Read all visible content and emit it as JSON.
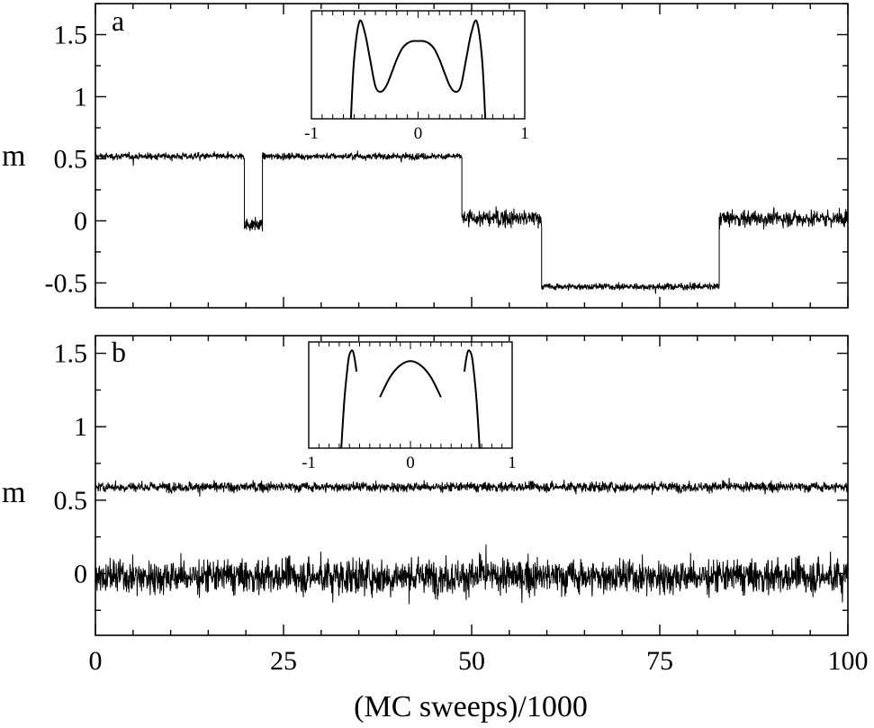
{
  "xlabel": "(MC sweeps)/1000",
  "chart_data": [
    {
      "type": "line",
      "panel_label": "a",
      "ylabel": "m",
      "xlim": [
        0,
        100
      ],
      "ylim": [
        -0.7,
        1.75
      ],
      "x_ticks": [
        "0",
        "25",
        "50",
        "75",
        "100"
      ],
      "y_ticks": [
        {
          "value": -0.5,
          "label": "-0.5"
        },
        {
          "value": 0,
          "label": "0"
        },
        {
          "value": 0.5,
          "label": "0.5"
        },
        {
          "value": 1,
          "label": "1"
        },
        {
          "value": 1.5,
          "label": "1.5"
        }
      ],
      "segments": [
        {
          "x": [
            0,
            19.8
          ],
          "level": 0.52,
          "noise": 0.035
        },
        {
          "x": [
            19.8,
            22.2
          ],
          "level": -0.03,
          "noise": 0.07
        },
        {
          "x": [
            22.2,
            48.7
          ],
          "level": 0.52,
          "noise": 0.035
        },
        {
          "x": [
            48.7,
            59.3
          ],
          "level": 0.02,
          "noise": 0.09
        },
        {
          "x": [
            59.3,
            82.9
          ],
          "level": -0.53,
          "noise": 0.035
        },
        {
          "x": [
            82.9,
            100
          ],
          "level": 0.02,
          "noise": 0.09
        }
      ],
      "inset": {
        "type": "line",
        "xlim": [
          -1,
          1
        ],
        "x_ticks": [
          "-1",
          "0",
          "1"
        ],
        "curves": [
          {
            "x": [
              -0.63,
              -0.6,
              -0.55,
              -0.5,
              -0.45,
              -0.4,
              -0.35,
              -0.3,
              -0.25,
              -0.2,
              -0.15,
              -0.1,
              -0.05,
              0,
              0.05,
              0.1,
              0.15,
              0.2,
              0.25,
              0.3,
              0.35,
              0.4,
              0.45,
              0.5,
              0.55,
              0.6,
              0.63
            ],
            "y": [
              0.0,
              0.55,
              0.9,
              0.8,
              0.55,
              0.3,
              0.25,
              0.3,
              0.42,
              0.55,
              0.65,
              0.7,
              0.72,
              0.72,
              0.72,
              0.7,
              0.65,
              0.55,
              0.42,
              0.3,
              0.25,
              0.3,
              0.55,
              0.8,
              0.9,
              0.55,
              0.0
            ]
          }
        ]
      }
    },
    {
      "type": "line",
      "panel_label": "b",
      "ylabel": "m",
      "xlim": [
        0,
        100
      ],
      "ylim": [
        -0.42,
        1.62
      ],
      "x_ticks": [
        "0",
        "25",
        "50",
        "75",
        "100"
      ],
      "y_ticks": [
        {
          "value": 0,
          "label": "0"
        },
        {
          "value": 0.5,
          "label": "0.5"
        },
        {
          "value": 1,
          "label": "1"
        },
        {
          "value": 1.5,
          "label": "1.5"
        }
      ],
      "series": [
        {
          "level": 0.59,
          "noise": 0.04
        },
        {
          "level": -0.02,
          "noise": 0.14
        }
      ],
      "inset": {
        "type": "line",
        "xlim": [
          -1,
          1
        ],
        "x_ticks": [
          "-1",
          "0",
          "1"
        ],
        "curves": [
          {
            "x": [
              -0.68,
              -0.65,
              -0.62,
              -0.6,
              -0.57,
              -0.55,
              -0.53
            ],
            "y": [
              0.0,
              0.45,
              0.75,
              0.88,
              0.92,
              0.85,
              0.72
            ]
          },
          {
            "x": [
              -0.3,
              -0.2,
              -0.1,
              0,
              0.1,
              0.2,
              0.3
            ],
            "y": [
              0.48,
              0.67,
              0.78,
              0.82,
              0.78,
              0.67,
              0.48
            ]
          },
          {
            "x": [
              0.53,
              0.55,
              0.57,
              0.6,
              0.62,
              0.65,
              0.68
            ],
            "y": [
              0.72,
              0.85,
              0.92,
              0.88,
              0.75,
              0.45,
              0.0
            ]
          }
        ]
      }
    }
  ]
}
